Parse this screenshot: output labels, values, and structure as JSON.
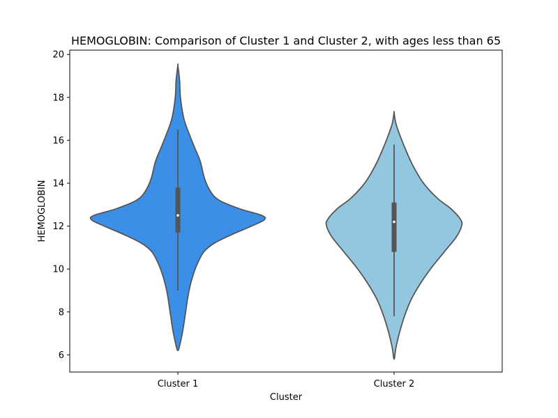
{
  "chart_data": {
    "type": "violin",
    "title": "HEMOGLOBIN: Comparison of Cluster 1 and Cluster 2, with ages less than 65",
    "xlabel": "Cluster",
    "ylabel": "HEMOGLOBIN",
    "ylim": [
      5.2,
      20.2
    ],
    "yticks": [
      6,
      8,
      10,
      12,
      14,
      16,
      18,
      20
    ],
    "categories": [
      "Cluster 1",
      "Cluster 2"
    ],
    "grid": false,
    "legend": "none",
    "series": [
      {
        "category": "Cluster 1",
        "color": "#3b8fe6",
        "min": 6.2,
        "max": 19.5,
        "q1": 11.7,
        "median": 12.5,
        "q3": 13.8,
        "whisker_low": 9.0,
        "whisker_high": 16.5,
        "density": [
          [
            6.2,
            0.0
          ],
          [
            6.6,
            0.03
          ],
          [
            7.2,
            0.06
          ],
          [
            8.0,
            0.09
          ],
          [
            8.8,
            0.12
          ],
          [
            9.5,
            0.16
          ],
          [
            10.2,
            0.22
          ],
          [
            10.8,
            0.3
          ],
          [
            11.2,
            0.42
          ],
          [
            11.6,
            0.62
          ],
          [
            12.0,
            0.85
          ],
          [
            12.3,
            1.0
          ],
          [
            12.5,
            0.97
          ],
          [
            12.8,
            0.72
          ],
          [
            13.2,
            0.48
          ],
          [
            13.6,
            0.38
          ],
          [
            14.2,
            0.31
          ],
          [
            15.0,
            0.26
          ],
          [
            15.6,
            0.2
          ],
          [
            16.2,
            0.14
          ],
          [
            17.0,
            0.07
          ],
          [
            18.0,
            0.03
          ],
          [
            18.8,
            0.02
          ],
          [
            19.5,
            0.0
          ]
        ]
      },
      {
        "category": "Cluster 2",
        "color": "#93c7e0",
        "min": 5.8,
        "max": 17.3,
        "q1": 10.8,
        "median": 12.2,
        "q3": 13.1,
        "whisker_low": 7.8,
        "whisker_high": 15.8,
        "density": [
          [
            5.8,
            0.0
          ],
          [
            6.3,
            0.02
          ],
          [
            7.0,
            0.06
          ],
          [
            7.8,
            0.12
          ],
          [
            8.6,
            0.2
          ],
          [
            9.3,
            0.3
          ],
          [
            10.0,
            0.42
          ],
          [
            10.8,
            0.58
          ],
          [
            11.5,
            0.72
          ],
          [
            12.0,
            0.78
          ],
          [
            12.3,
            0.77
          ],
          [
            12.8,
            0.66
          ],
          [
            13.3,
            0.5
          ],
          [
            14.0,
            0.34
          ],
          [
            14.8,
            0.22
          ],
          [
            15.5,
            0.14
          ],
          [
            16.2,
            0.07
          ],
          [
            16.8,
            0.02
          ],
          [
            17.3,
            0.0
          ]
        ]
      }
    ]
  }
}
